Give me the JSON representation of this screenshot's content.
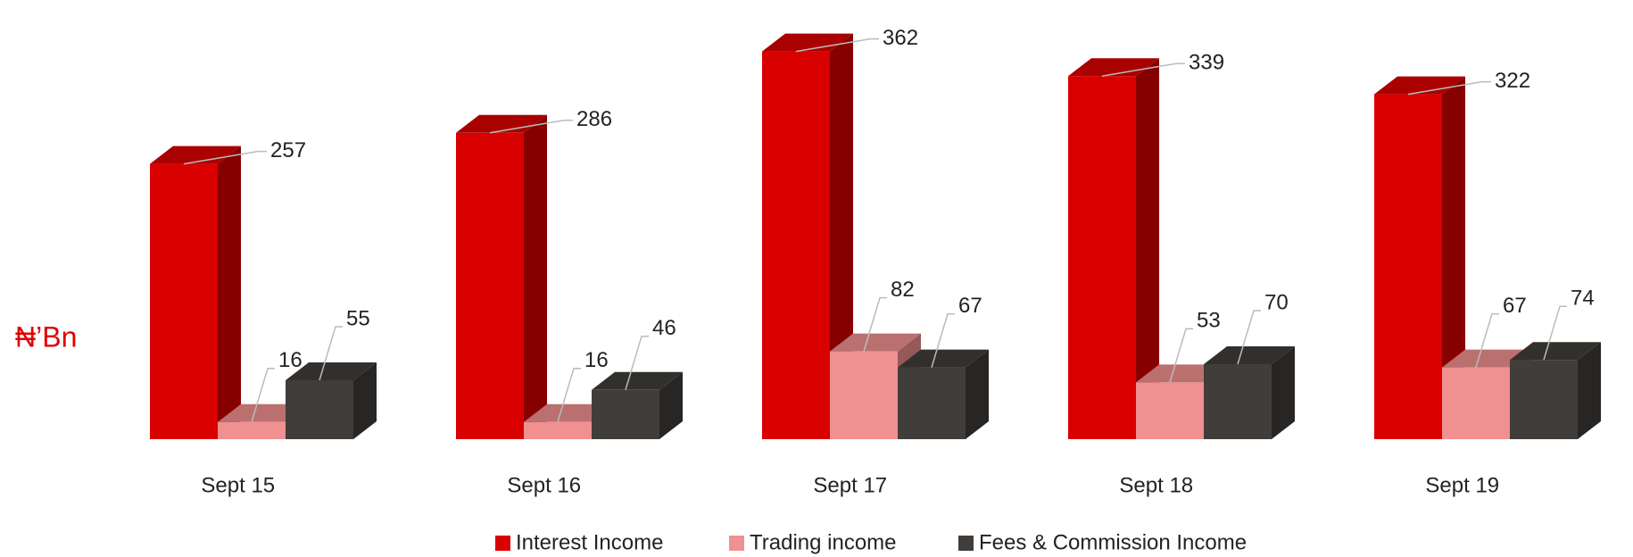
{
  "chart_data": {
    "type": "bar3d",
    "ylabel": "₦’Bn",
    "categories": [
      "Sept 15",
      "Sept 16",
      "Sept 17",
      "Sept 18",
      "Sept 19"
    ],
    "series": [
      {
        "name": "Interest Income",
        "color": "#d90000",
        "values": [
          257,
          286,
          362,
          339,
          322
        ]
      },
      {
        "name": "Trading income",
        "color": "#f09090",
        "values": [
          16,
          16,
          82,
          53,
          67
        ]
      },
      {
        "name": "Fees & Commission Income",
        "color": "#403d3a",
        "values": [
          55,
          46,
          67,
          70,
          74
        ]
      }
    ]
  }
}
